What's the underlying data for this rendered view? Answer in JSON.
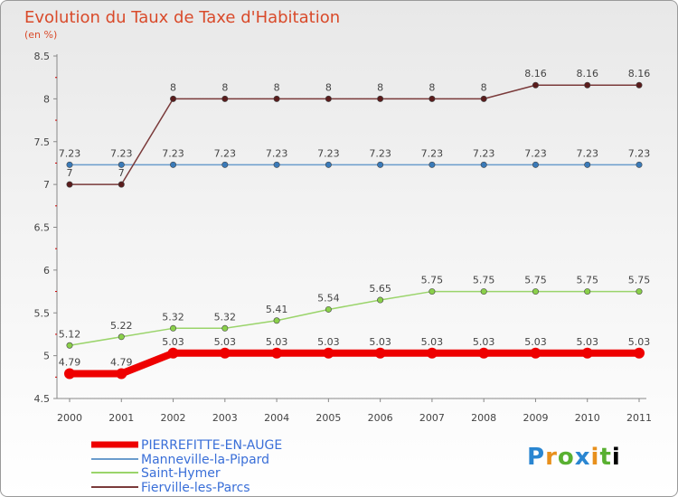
{
  "chart_data": {
    "type": "line",
    "title": "Evolution du Taux de Taxe d'Habitation",
    "subtitle": "(en %)",
    "categories": [
      "2000",
      "2001",
      "2002",
      "2003",
      "2004",
      "2005",
      "2006",
      "2007",
      "2008",
      "2009",
      "2010",
      "2011"
    ],
    "ylim": [
      4.5,
      8.5
    ],
    "yticks": [
      "4.5",
      "5",
      "5.5",
      "6",
      "6.5",
      "7",
      "7.5",
      "8",
      "8.5"
    ],
    "series": [
      {
        "name": "PIERREFITTE-EN-AUGE",
        "color": "#ee0000",
        "values": [
          4.79,
          4.79,
          5.03,
          5.03,
          5.03,
          5.03,
          5.03,
          5.03,
          5.03,
          5.03,
          5.03,
          5.03
        ],
        "labels": [
          "4.79",
          "4.79",
          "5.03",
          "5.03",
          "5.03",
          "5.03",
          "5.03",
          "5.03",
          "5.03",
          "5.03",
          "5.03",
          "5.03"
        ]
      },
      {
        "name": "Manneville-la-Pipard",
        "color": "#6a9ccc",
        "values": [
          7.23,
          7.23,
          7.23,
          7.23,
          7.23,
          7.23,
          7.23,
          7.23,
          7.23,
          7.23,
          7.23,
          7.23
        ],
        "labels": [
          "7.23",
          "7.23",
          "7.23",
          "7.23",
          "7.23",
          "7.23",
          "7.23",
          "7.23",
          "7.23",
          "7.23",
          "7.23",
          "7.23"
        ]
      },
      {
        "name": "Saint-Hymer",
        "color": "#9ad46a",
        "values": [
          5.12,
          5.22,
          5.32,
          5.32,
          5.41,
          5.54,
          5.65,
          5.75,
          5.75,
          5.75,
          5.75,
          5.75
        ],
        "labels": [
          "5.12",
          "5.22",
          "5.32",
          "5.32",
          "5.41",
          "5.54",
          "5.65",
          "5.75",
          "5.75",
          "5.75",
          "5.75",
          "5.75"
        ]
      },
      {
        "name": "Fierville-les-Parcs",
        "color": "#7a3a3a",
        "values": [
          7,
          7,
          8,
          8,
          8,
          8,
          8,
          8,
          8,
          8.16,
          8.16,
          8.16
        ],
        "labels": [
          "7",
          "7",
          "8",
          "8",
          "8",
          "8",
          "8",
          "8",
          "8",
          "8.16",
          "8.16",
          "8.16"
        ]
      }
    ]
  },
  "logo": {
    "letters": [
      "P",
      "r",
      "o",
      "x",
      "i",
      "t",
      "i"
    ]
  }
}
